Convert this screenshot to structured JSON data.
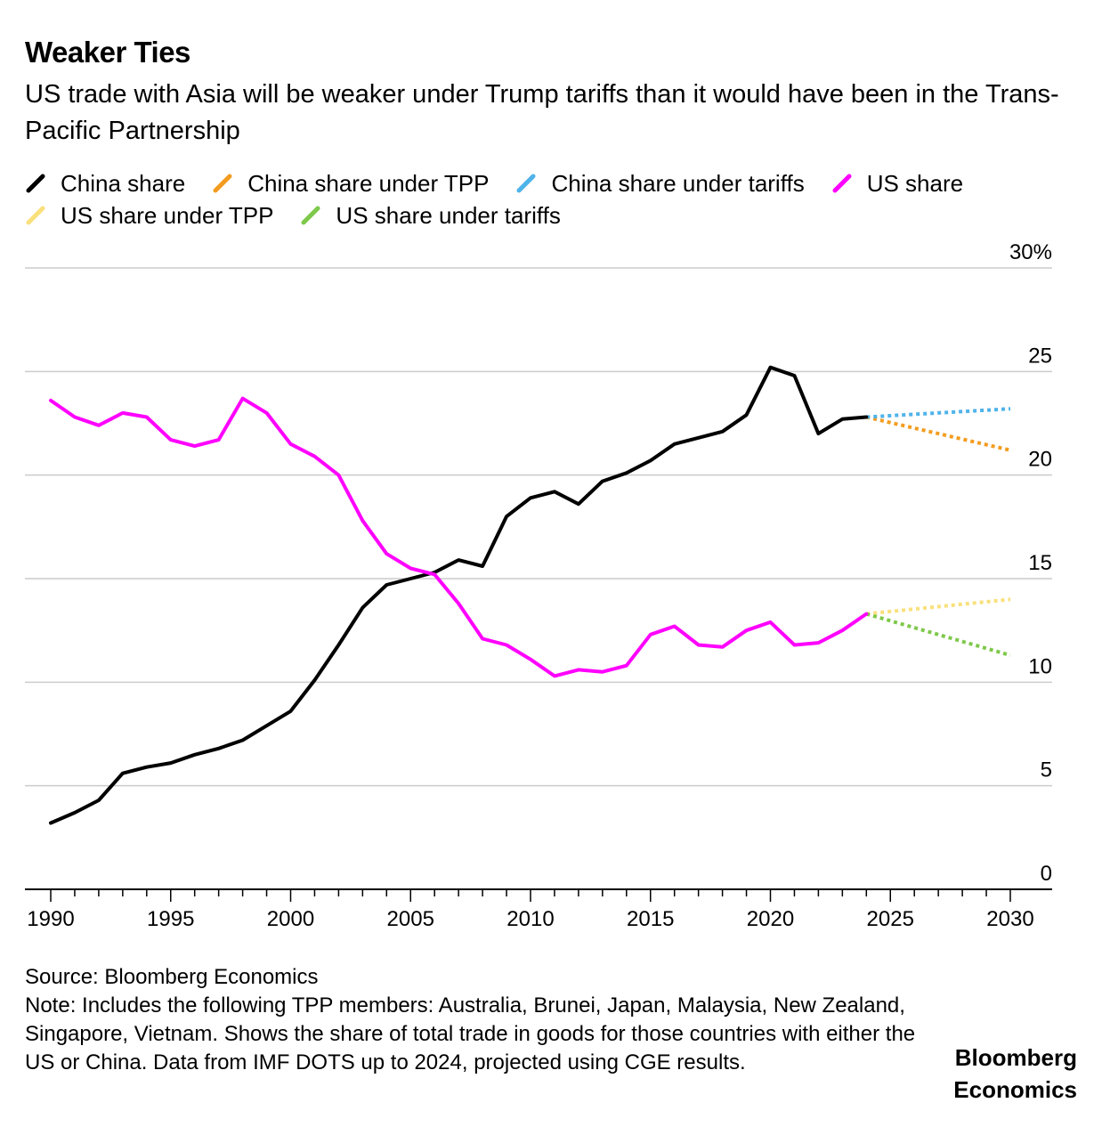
{
  "title": "Weaker Ties",
  "subtitle": "US trade with Asia will be weaker under Trump tariffs than it would have been in the Trans-Pacific Partnership",
  "source": "Source: Bloomberg Economics",
  "note": "Note: Includes the following TPP members: Australia, Brunei, Japan, Malaysia, New Zealand, Singapore, Vietnam. Shows the share of total trade in goods for those countries with either the US or China. Data from IMF DOTS up to 2024, projected using CGE results.",
  "brand": {
    "line1": "Bloomberg",
    "line2": "Economics"
  },
  "colors": {
    "china": "#000000",
    "china_tpp": "#f39c1f",
    "china_tariffs": "#4fb3ea",
    "us": "#ff00ff",
    "us_tpp": "#f9e07c",
    "us_tariffs": "#7ec84a",
    "grid": "#cccccc"
  },
  "chart_data": {
    "type": "line",
    "title": "Weaker Ties",
    "xlabel": "",
    "ylabel": "",
    "xlim": [
      1990,
      2030
    ],
    "ylim": [
      0,
      30
    ],
    "y_ticks": [
      0,
      5,
      10,
      15,
      20,
      25,
      30
    ],
    "y_tick_labels": [
      "0",
      "5",
      "10",
      "15",
      "20",
      "25",
      "30%"
    ],
    "x_ticks": [
      1990,
      1995,
      2000,
      2005,
      2010,
      2015,
      2020,
      2025,
      2030
    ],
    "x_tick_labels": [
      "1990",
      "1995",
      "2000",
      "2005",
      "2010",
      "2015",
      "2020",
      "2025",
      "2030"
    ],
    "y_axis_position": "right",
    "grid": true,
    "legend_position": "top",
    "series": [
      {
        "name": "China share",
        "color": "#000000",
        "style": "solid",
        "x": [
          1990,
          1991,
          1992,
          1993,
          1994,
          1995,
          1996,
          1997,
          1998,
          1999,
          2000,
          2001,
          2002,
          2003,
          2004,
          2005,
          2006,
          2007,
          2008,
          2009,
          2010,
          2011,
          2012,
          2013,
          2014,
          2015,
          2016,
          2017,
          2018,
          2019,
          2020,
          2021,
          2022,
          2023,
          2024
        ],
        "y": [
          3.2,
          3.7,
          4.3,
          5.6,
          5.9,
          6.1,
          6.5,
          6.8,
          7.2,
          7.9,
          8.6,
          10.1,
          11.8,
          13.6,
          14.7,
          15.0,
          15.3,
          15.9,
          15.6,
          18.0,
          18.9,
          19.2,
          18.6,
          19.7,
          20.1,
          20.7,
          21.5,
          21.8,
          22.1,
          22.9,
          25.2,
          24.8,
          22.0,
          22.7,
          22.8
        ]
      },
      {
        "name": "China share under TPP",
        "color": "#f39c1f",
        "style": "dotted",
        "x": [
          2024,
          2030
        ],
        "y": [
          22.8,
          21.2
        ]
      },
      {
        "name": "China share under tariffs",
        "color": "#4fb3ea",
        "style": "dotted",
        "x": [
          2024,
          2030
        ],
        "y": [
          22.8,
          23.2
        ]
      },
      {
        "name": "US share",
        "color": "#ff00ff",
        "style": "solid",
        "x": [
          1990,
          1991,
          1992,
          1993,
          1994,
          1995,
          1996,
          1997,
          1998,
          1999,
          2000,
          2001,
          2002,
          2003,
          2004,
          2005,
          2006,
          2007,
          2008,
          2009,
          2010,
          2011,
          2012,
          2013,
          2014,
          2015,
          2016,
          2017,
          2018,
          2019,
          2020,
          2021,
          2022,
          2023,
          2024
        ],
        "y": [
          23.6,
          22.8,
          22.4,
          23.0,
          22.8,
          21.7,
          21.4,
          21.7,
          23.7,
          23.0,
          21.5,
          20.9,
          20.0,
          17.8,
          16.2,
          15.5,
          15.2,
          13.8,
          12.1,
          11.8,
          11.1,
          10.3,
          10.6,
          10.5,
          10.8,
          12.3,
          12.7,
          11.8,
          11.7,
          12.5,
          12.9,
          11.8,
          11.9,
          12.5,
          13.3
        ]
      },
      {
        "name": "US share under TPP",
        "color": "#f9e07c",
        "style": "dotted",
        "x": [
          2024,
          2030
        ],
        "y": [
          13.3,
          14.0
        ]
      },
      {
        "name": "US share under tariffs",
        "color": "#7ec84a",
        "style": "dotted",
        "x": [
          2024,
          2030
        ],
        "y": [
          13.3,
          11.3
        ]
      }
    ]
  }
}
